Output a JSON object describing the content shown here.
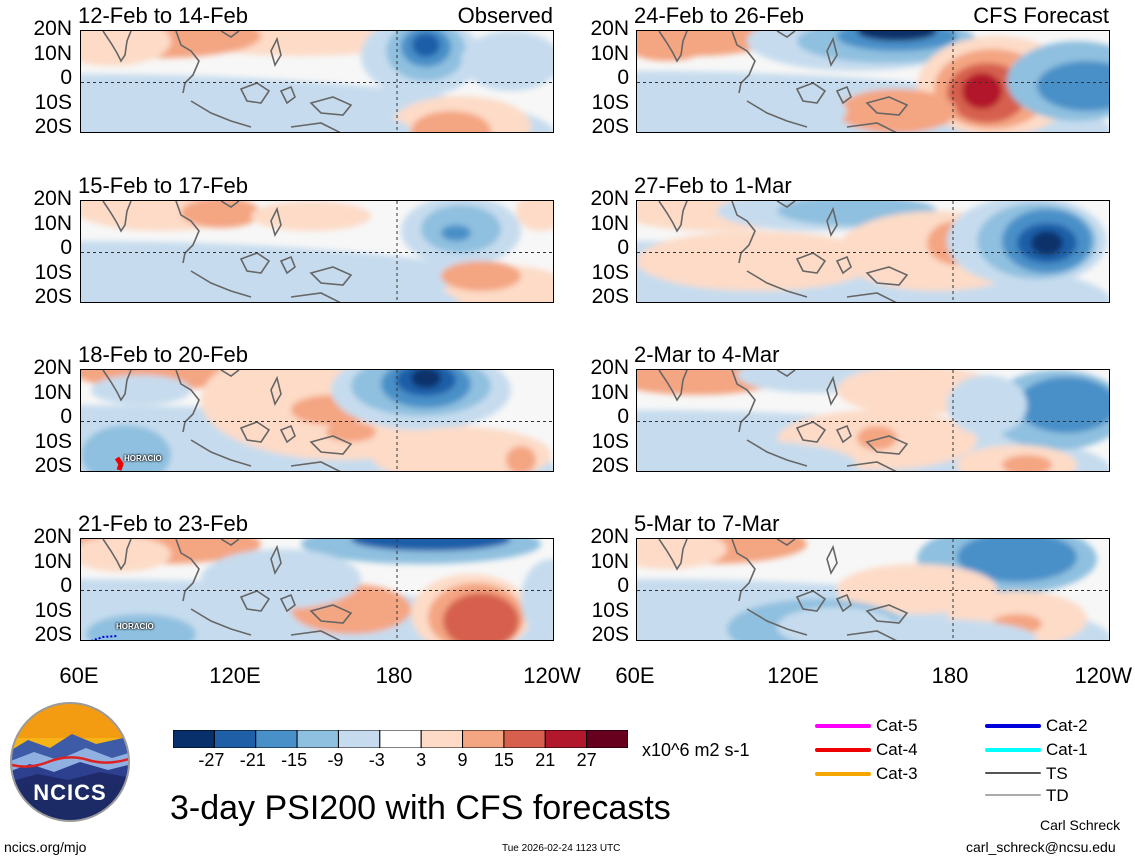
{
  "chart_data": {
    "type": "heatmap",
    "title": "3-day PSI200 with CFS forecasts",
    "variable": "PSI200",
    "units": "x10^6 m2 s-1",
    "lat_labels": [
      "20N",
      "10N",
      "0",
      "10S",
      "20S"
    ],
    "lat_range": [
      -20,
      20
    ],
    "lon_labels": [
      "60E",
      "120E",
      "180",
      "120W"
    ],
    "lon_range": [
      60,
      240
    ],
    "colorbar": {
      "ticks": [
        "-27",
        "-21",
        "-15",
        "-9",
        "-3",
        "3",
        "9",
        "15",
        "21",
        "27"
      ],
      "colors": [
        "#08306b",
        "#1f5fa8",
        "#4a90c8",
        "#8fc0df",
        "#c6dcee",
        "#ffffff",
        "#fddbc7",
        "#f4a582",
        "#d6604d",
        "#b2182b",
        "#67001f"
      ]
    },
    "panels": [
      {
        "title": "12-Feb to 14-Feb",
        "tag": "Observed"
      },
      {
        "title": "15-Feb to 17-Feb",
        "tag": ""
      },
      {
        "title": "18-Feb to 20-Feb",
        "tag": "",
        "storm_label": "HORACIO"
      },
      {
        "title": "21-Feb to 23-Feb",
        "tag": "",
        "storm_label": "HORACIO"
      },
      {
        "title": "24-Feb to 26-Feb",
        "tag": "CFS Forecast"
      },
      {
        "title": "27-Feb to 1-Mar",
        "tag": ""
      },
      {
        "title": "2-Mar to 4-Mar",
        "tag": ""
      },
      {
        "title": "5-Mar to 7-Mar",
        "tag": ""
      }
    ],
    "storm_legend": [
      {
        "label": "Cat-5",
        "color": "#ff00ff"
      },
      {
        "label": "Cat-4",
        "color": "#ee0000"
      },
      {
        "label": "Cat-3",
        "color": "#f5a500"
      },
      {
        "label": "Cat-2",
        "color": "#0000dd"
      },
      {
        "label": "Cat-1",
        "color": "#00ffff"
      },
      {
        "label": "TS",
        "color": "#555555"
      },
      {
        "label": "TD",
        "color": "#aaaaaa"
      }
    ]
  },
  "logo": {
    "text": "NCICS"
  },
  "footer": {
    "url": "ncics.org/mjo",
    "timestamp": "Tue 2026-02-24 1123 UTC",
    "author": "Carl Schreck",
    "email": "carl_schreck@ncsu.edu"
  }
}
